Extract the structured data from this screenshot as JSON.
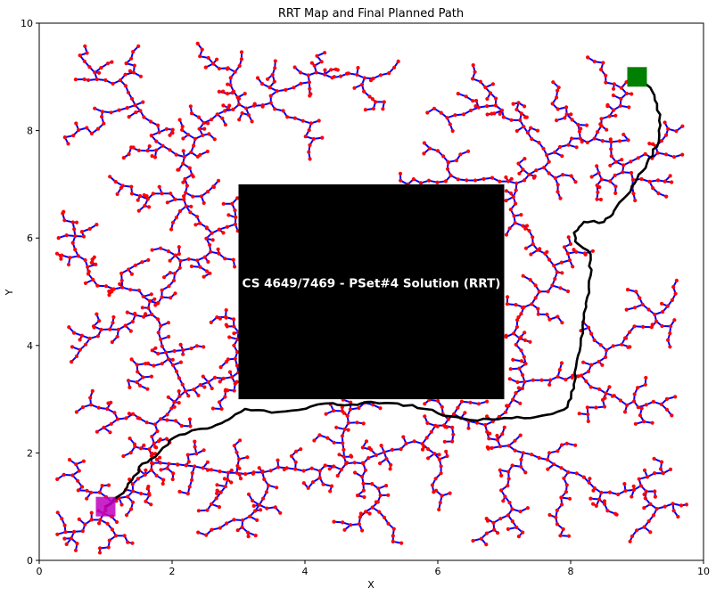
{
  "chart_data": {
    "type": "scatter",
    "title": "RRT Map and Final Planned Path",
    "xlabel": "X",
    "ylabel": "Y",
    "xlim": [
      0,
      10
    ],
    "ylim": [
      0,
      10
    ],
    "xticks": [
      "0",
      "2",
      "4",
      "6",
      "8",
      "10"
    ],
    "yticks": [
      "0",
      "2",
      "4",
      "6",
      "8",
      "10"
    ],
    "grid": false,
    "obstacle": {
      "x": [
        3,
        7
      ],
      "y": [
        3,
        7
      ],
      "label": "CS 4649/7469 - PSet#4 Solution (RRT)"
    },
    "start": {
      "x": 1.0,
      "y": 1.0
    },
    "goal": {
      "x": 9.0,
      "y": 9.0
    },
    "final_path": [
      [
        1.0,
        1.0
      ],
      [
        1.2,
        1.2
      ],
      [
        1.4,
        1.5
      ],
      [
        1.55,
        1.8
      ],
      [
        1.8,
        2.0
      ],
      [
        2.05,
        2.3
      ],
      [
        2.3,
        2.42
      ],
      [
        2.6,
        2.48
      ],
      [
        2.85,
        2.62
      ],
      [
        3.1,
        2.82
      ],
      [
        3.5,
        2.75
      ],
      [
        3.9,
        2.8
      ],
      [
        4.3,
        2.92
      ],
      [
        4.7,
        2.9
      ],
      [
        5.0,
        2.95
      ],
      [
        5.4,
        2.92
      ],
      [
        5.8,
        2.82
      ],
      [
        6.2,
        2.68
      ],
      [
        6.6,
        2.6
      ],
      [
        7.0,
        2.65
      ],
      [
        7.4,
        2.65
      ],
      [
        7.7,
        2.72
      ],
      [
        7.95,
        2.85
      ],
      [
        8.05,
        3.2
      ],
      [
        8.08,
        3.6
      ],
      [
        8.15,
        4.0
      ],
      [
        8.2,
        4.5
      ],
      [
        8.25,
        4.9
      ],
      [
        8.3,
        5.3
      ],
      [
        8.3,
        5.7
      ],
      [
        8.1,
        5.9
      ],
      [
        8.05,
        6.1
      ],
      [
        8.2,
        6.3
      ],
      [
        8.5,
        6.3
      ],
      [
        8.65,
        6.5
      ],
      [
        8.85,
        6.8
      ],
      [
        9.0,
        7.1
      ],
      [
        9.15,
        7.4
      ],
      [
        9.3,
        7.7
      ],
      [
        9.35,
        8.1
      ],
      [
        9.3,
        8.5
      ],
      [
        9.2,
        8.8
      ],
      [
        9.0,
        9.0
      ]
    ],
    "colors": {
      "tree_edges": "#0000ff",
      "tree_nodes": "#ff0000",
      "path": "#000000",
      "obstacle": "#000000",
      "start": "#bf00bf",
      "goal": "#008000"
    }
  }
}
